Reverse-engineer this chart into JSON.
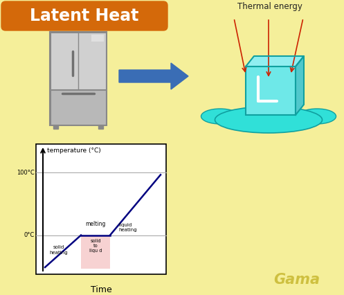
{
  "bg_color": "#f5ef9a",
  "title_text": "Latent Heat",
  "title_bg": "#d4690a",
  "title_text_color": "#ffffff",
  "thermal_energy_text": "Thermal energy",
  "thermal_energy_color": "#222222",
  "big_arrow_color": "#3a6db5",
  "time_label": "Time",
  "ylabel": "temperature (°C)",
  "y100_label": "100°C",
  "y0_label": "0°C",
  "annotation_solid_heating": "solid\nheating",
  "annotation_melting": "melting",
  "annotation_solid_to_liquid": "solid\nto\nliqu d",
  "annotation_liquid_heating": "liquid\nheating",
  "line_color": "#000080",
  "shade_color": "#f5c0c0",
  "gama_text": "Gama",
  "gama_color": "#c8b830",
  "ice_color": "#6ee8e8",
  "ice_edge": "#10a0a0",
  "water_color": "#30e0d8",
  "red_arrow_color": "#cc2200",
  "fridge_body": "#c8c8c8",
  "fridge_dark": "#a0a0a0",
  "fridge_edge": "#888888"
}
